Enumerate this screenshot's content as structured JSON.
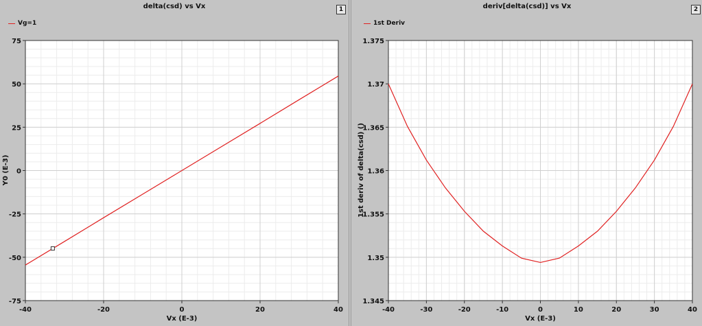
{
  "panels": [
    {
      "title": "delta(csd) vs Vx",
      "badge": "1",
      "legend": "Vg=1"
    },
    {
      "title": "deriv[delta(csd)] vs Vx",
      "badge": "2",
      "legend": "1st Deriv"
    }
  ],
  "chart_data": [
    {
      "type": "line",
      "title": "delta(csd) vs Vx",
      "xlabel": "Vx (E-3)",
      "ylabel": "Y0 (E-3)",
      "xlim": [
        -40,
        40
      ],
      "ylim": [
        -75,
        75
      ],
      "xticks": [
        -40,
        -20,
        0,
        20,
        40
      ],
      "yticks": [
        -75,
        -50,
        -25,
        0,
        25,
        50,
        75
      ],
      "xtick_labels": [
        "-40",
        "-20",
        "0",
        "20",
        "40"
      ],
      "ytick_labels": [
        "-75",
        "-50",
        "-25",
        "0",
        "25",
        "50",
        "75"
      ],
      "grid": true,
      "legend_position": "top-left",
      "series": [
        {
          "name": "Vg=1",
          "color": "#e02020",
          "x": [
            -40,
            -30,
            -20,
            -10,
            0,
            10,
            20,
            30,
            40
          ],
          "y": [
            -54.5,
            -40.9,
            -27.2,
            -13.6,
            0,
            13.6,
            27.2,
            40.9,
            54.5
          ]
        }
      ],
      "marker": {
        "x": -33,
        "y": -44.9
      }
    },
    {
      "type": "line",
      "title": "deriv[delta(csd)] vs Vx",
      "xlabel": "Vx (E-3)",
      "ylabel": "1st deriv of delta(csd) ()",
      "xlim": [
        -40,
        40
      ],
      "ylim": [
        1.345,
        1.375
      ],
      "xticks": [
        -40,
        -30,
        -20,
        -10,
        0,
        10,
        20,
        30,
        40
      ],
      "yticks": [
        1.345,
        1.35,
        1.355,
        1.36,
        1.365,
        1.37,
        1.375
      ],
      "xtick_labels": [
        "-40",
        "-30",
        "-20",
        "-10",
        "0",
        "10",
        "20",
        "30",
        "40"
      ],
      "ytick_labels": [
        "1.345",
        "1.35",
        "1.355",
        "1.36",
        "1.365",
        "1.37",
        "1.375"
      ],
      "grid": true,
      "legend_position": "top-left",
      "series": [
        {
          "name": "1st Deriv",
          "color": "#e02020",
          "x": [
            -40,
            -35,
            -30,
            -25,
            -20,
            -15,
            -10,
            -5,
            0,
            5,
            10,
            15,
            20,
            25,
            30,
            35,
            40
          ],
          "y": [
            1.37,
            1.3651,
            1.3612,
            1.358,
            1.3553,
            1.353,
            1.3513,
            1.3499,
            1.3494,
            1.3499,
            1.3513,
            1.353,
            1.3553,
            1.358,
            1.3612,
            1.3651,
            1.37
          ]
        }
      ]
    }
  ]
}
